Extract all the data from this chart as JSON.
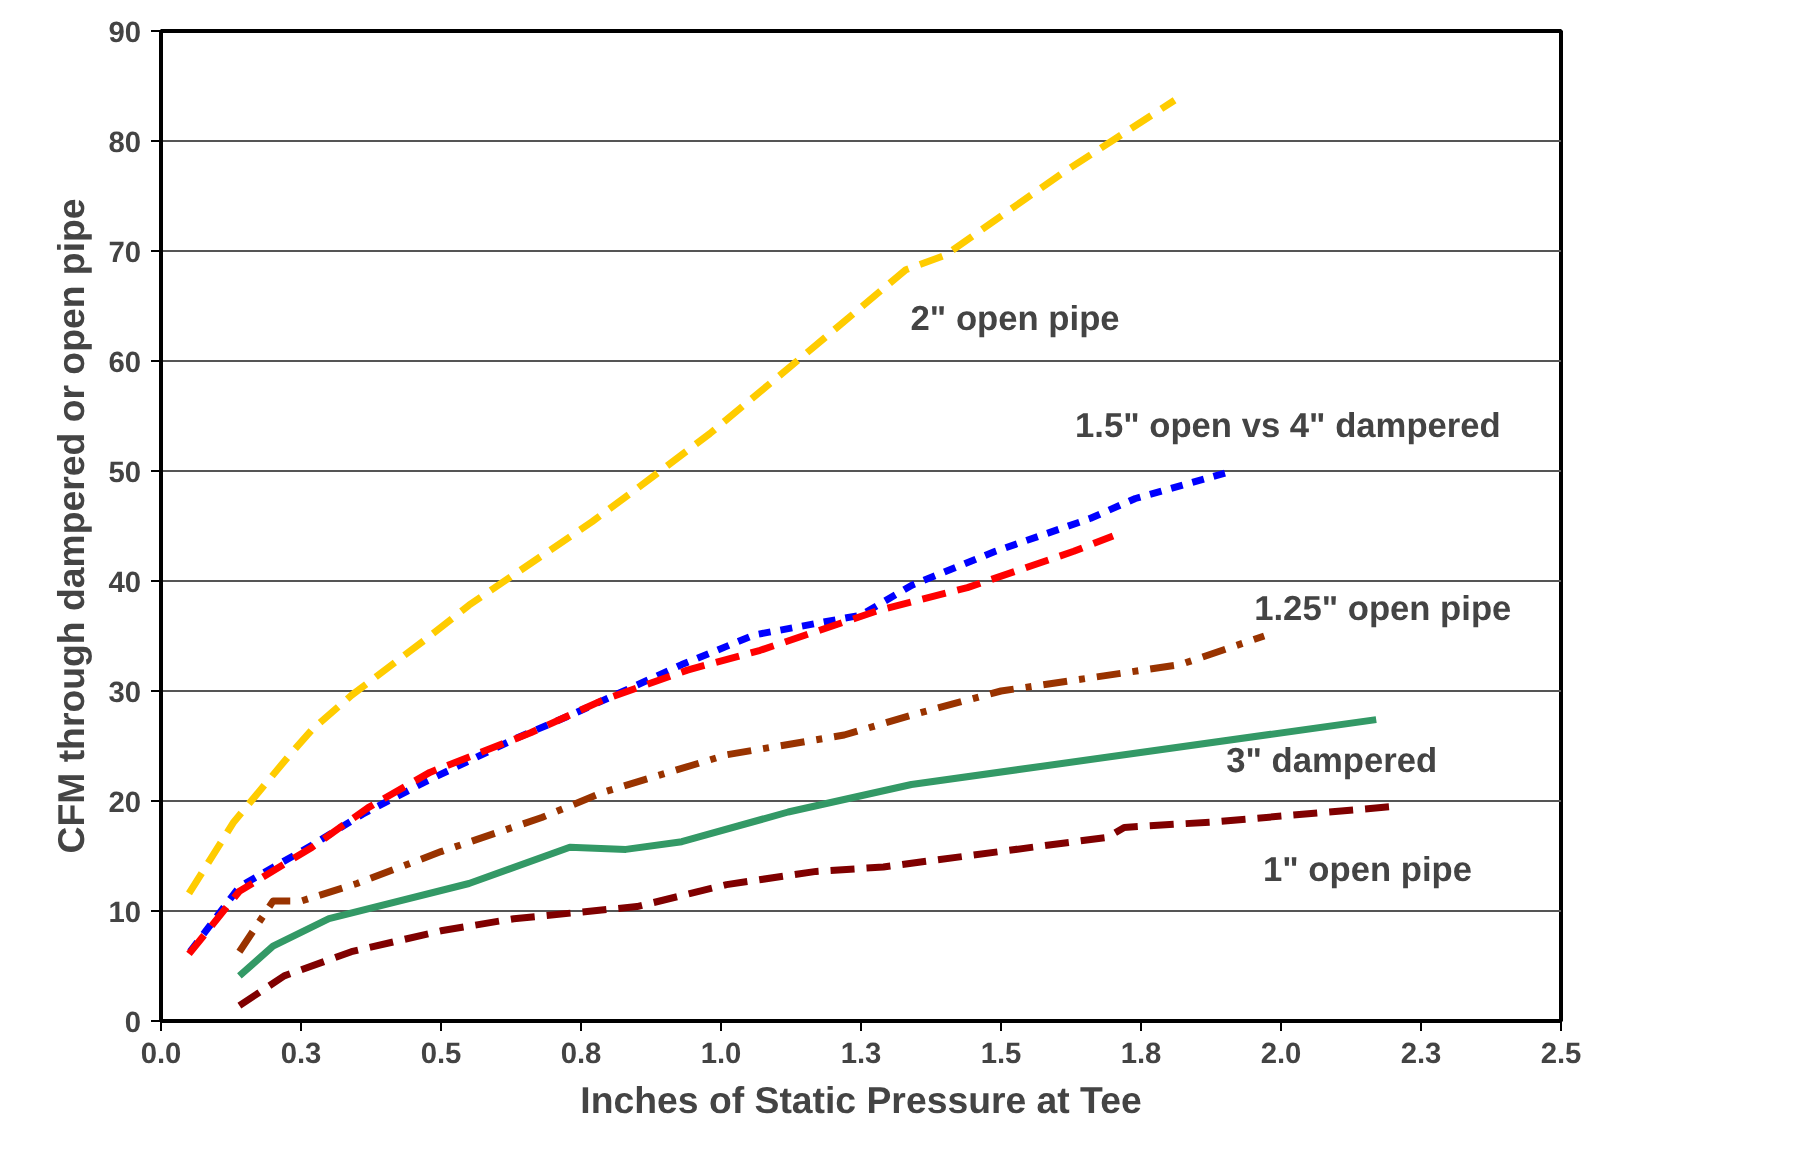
{
  "chart_data": {
    "type": "line",
    "xlabel": "Inches of Static Pressure at Tee",
    "ylabel": "CFM through dampered or open pipe",
    "xlim": [
      0,
      2.5
    ],
    "ylim": [
      0,
      90
    ],
    "xticks": [
      {
        "value": 0,
        "label": "0.0"
      },
      {
        "value": 0.25,
        "label": "0.3"
      },
      {
        "value": 0.5,
        "label": "0.5"
      },
      {
        "value": 0.75,
        "label": "0.8"
      },
      {
        "value": 1.0,
        "label": "1.0"
      },
      {
        "value": 1.25,
        "label": "1.3"
      },
      {
        "value": 1.5,
        "label": "1.5"
      },
      {
        "value": 1.75,
        "label": "1.8"
      },
      {
        "value": 2.0,
        "label": "2.0"
      },
      {
        "value": 2.25,
        "label": "2.3"
      },
      {
        "value": 2.5,
        "label": "2.5"
      }
    ],
    "yticks": [
      0,
      10,
      20,
      30,
      40,
      50,
      60,
      70,
      80,
      90
    ],
    "grid": "y",
    "marker": "none",
    "series": [
      {
        "name": "2\" open pipe",
        "color": "#ffcc00",
        "line_style": "dashed",
        "x": [
          0.05,
          0.13,
          0.23,
          0.27,
          0.34,
          0.47,
          0.55,
          0.77,
          0.85,
          0.98,
          1.15,
          1.33,
          1.4,
          1.61,
          1.81
        ],
        "values": [
          11.6,
          18.1,
          24.2,
          26.5,
          29.6,
          34.6,
          37.8,
          45.4,
          48.4,
          53.4,
          60.6,
          68.3,
          69.6,
          77.1,
          83.7
        ]
      },
      {
        "name": "1.5\" open vs 4\" dampered",
        "color": "#0000ff",
        "line_style": "dotted",
        "x": [
          0.052,
          0.14,
          0.27,
          0.36,
          0.47,
          0.63,
          0.74,
          0.93,
          1.06,
          1.25,
          1.34,
          1.49,
          1.66,
          1.74,
          1.9
        ],
        "values": [
          6.3,
          12.2,
          16,
          18.8,
          21.7,
          25.6,
          28,
          32.4,
          35.1,
          36.9,
          39.6,
          42.7,
          45.7,
          47.5,
          49.8
        ]
      },
      {
        "color": "#ff0000",
        "line_style": "dashed",
        "x": [
          0.05,
          0.14,
          0.27,
          0.37,
          0.48,
          0.66,
          0.79,
          0.94,
          1.07,
          1.28,
          1.44,
          1.63,
          1.7
        ],
        "values": [
          6.1,
          11.8,
          15.8,
          19.4,
          22.6,
          26.2,
          29.2,
          31.9,
          33.7,
          37.3,
          39.4,
          42.7,
          44.1
        ]
      },
      {
        "name": "1.25\" open pipe",
        "color": "#993300",
        "line_style": "dashdot",
        "x": [
          0.14,
          0.2,
          0.25,
          0.35,
          0.5,
          0.68,
          0.79,
          1.01,
          1.22,
          1.34,
          1.5,
          1.82,
          1.97
        ],
        "values": [
          6.3,
          10.9,
          10.9,
          12.5,
          15.4,
          18.5,
          20.8,
          24.2,
          26,
          27.8,
          30,
          32.4,
          35
        ]
      },
      {
        "name": "3\" dampered",
        "color": "#339966",
        "line_style": "solid",
        "x": [
          0.14,
          0.2,
          0.3,
          0.55,
          0.73,
          0.83,
          0.93,
          1.12,
          1.34,
          2.17
        ],
        "values": [
          4.1,
          6.8,
          9.3,
          12.5,
          15.8,
          15.6,
          16.3,
          19,
          21.5,
          27.4
        ]
      },
      {
        "name": "1\" open pipe",
        "color": "#800000",
        "line_style": "dashed",
        "x": [
          0.14,
          0.22,
          0.34,
          0.5,
          0.63,
          0.85,
          1.01,
          1.17,
          1.29,
          1.69,
          1.72,
          1.88,
          2.2
        ],
        "values": [
          1.4,
          4.1,
          6.3,
          8.2,
          9.3,
          10.4,
          12.4,
          13.6,
          14,
          16.7,
          17.6,
          18.1,
          19.5
        ]
      }
    ]
  }
}
